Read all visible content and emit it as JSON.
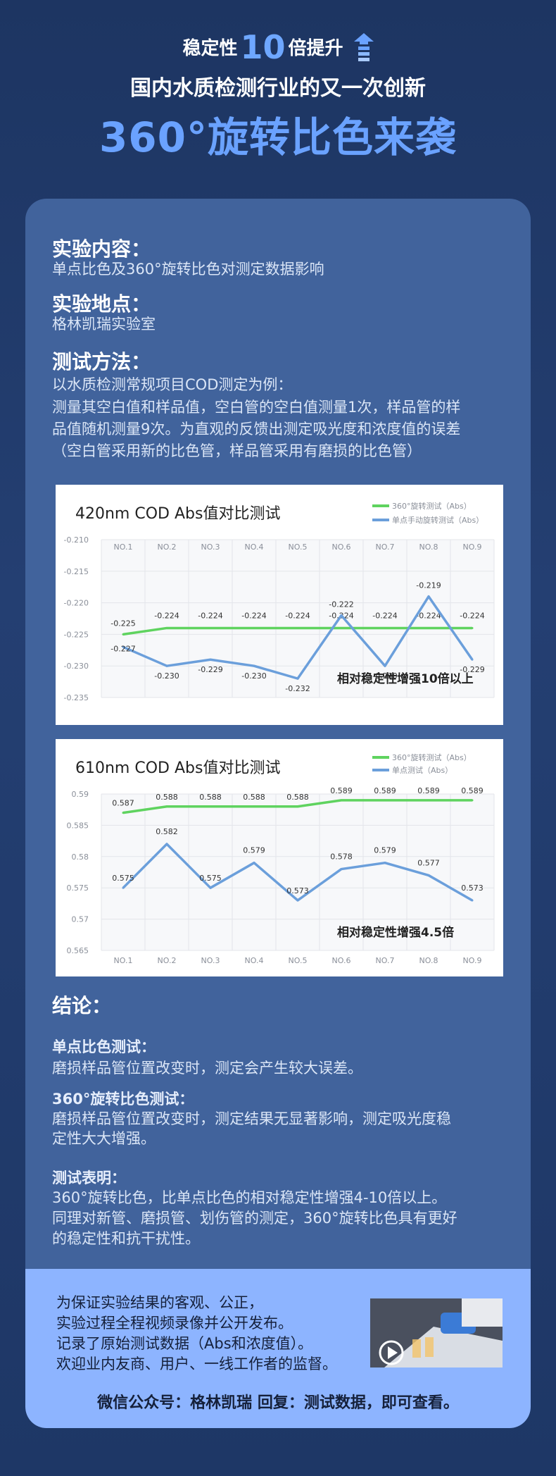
{
  "header": {
    "line1_pre": "稳定性",
    "line1_num": "10",
    "line1_post": "倍提升",
    "line2": "国内水质检测行业的又一次创新",
    "line3": "360°旋转比色来袭"
  },
  "sections": {
    "content_title": "实验内容：",
    "content_text": "单点比色及360°旋转比色对测定数据影响",
    "location_title": "实验地点：",
    "location_text": "格林凯瑞实验室",
    "method_title": "测试方法：",
    "method_lines": [
      "以水质检测常规项目COD测定为例：",
      "测量其空白值和样品值，空白管的空白值测量1次，样品管的样",
      "品值随机测量9次。为直观的反馈出测定吸光度和浓度值的误差",
      "（空白管采用新的比色管，样品管采用有磨损的比色管）"
    ]
  },
  "conclusion": {
    "title": "结论：",
    "single_title": "单点比色测试：",
    "single_text": "磨损样品管位置改变时，测定会产生较大误差。",
    "rotate_title": "360°旋转比色测试：",
    "rotate_lines": [
      "磨损样品管位置改变时，测定结果无显著影响，测定吸光度稳",
      "定性大大增强。"
    ],
    "summary_title": "测试表明：",
    "summary_lines": [
      "360°旋转比色，比单点比色的相对稳定性增强4-10倍以上。",
      "同理对新管、磨损管、划伤管的测定，360°旋转比色具有更好",
      "的稳定性和抗干扰性。"
    ]
  },
  "footer": {
    "lines": [
      "为保证实验结果的客观、公正，",
      "实验过程全程视频录像并公开发布。",
      "记录了原始测试数据（Abs和浓度值）。",
      "欢迎业内友商、用户、一线工作者的监督。"
    ],
    "wechat": "微信公众号：格林凯瑞    回复：测试数据，即可查看。"
  },
  "colors": {
    "rotate": "#5fd35f",
    "single": "#6b9fdb",
    "accent": "#6aa2ff"
  },
  "chart_data": [
    {
      "type": "line",
      "title": "420nm COD Abs值对比测试",
      "categories": [
        "NO.1",
        "NO.2",
        "NO.3",
        "NO.4",
        "NO.5",
        "NO.6",
        "NO.7",
        "NO.8",
        "NO.9"
      ],
      "ylim": [
        -0.235,
        -0.21
      ],
      "yticks": [
        "-0.210",
        "-0.215",
        "-0.220",
        "-0.225",
        "-0.230",
        "-0.235"
      ],
      "grid": true,
      "legend_position": "top-right",
      "series": [
        {
          "name": "360°旋转测试（Abs）",
          "values": [
            -0.225,
            -0.224,
            -0.224,
            -0.224,
            -0.224,
            -0.224,
            -0.224,
            -0.224,
            -0.224
          ],
          "labels": [
            "-0.225",
            "-0.224",
            "-0.224",
            "-0.224",
            "-0.224",
            "-0.224",
            "-0.224",
            "-0.224",
            "-0.224"
          ]
        },
        {
          "name": "单点手动旋转测试（Abs）",
          "values": [
            -0.227,
            -0.23,
            -0.229,
            -0.23,
            -0.232,
            -0.222,
            -0.23,
            -0.219,
            -0.229
          ],
          "labels": [
            "-0.227",
            "-0.230",
            "-0.229",
            "-0.230",
            "-0.232",
            "-0.222",
            "-0.230",
            "-0.219",
            "-0.229"
          ]
        }
      ],
      "annotation": "相对稳定性增强10倍以上"
    },
    {
      "type": "line",
      "title": "610nm COD Abs值对比测试",
      "categories": [
        "NO.1",
        "NO.2",
        "NO.3",
        "NO.4",
        "NO.5",
        "NO.6",
        "NO.7",
        "NO.8",
        "NO.9"
      ],
      "ylim": [
        0.565,
        0.59
      ],
      "yticks": [
        "0.59",
        "0.585",
        "0.58",
        "0.575",
        "0.57",
        "0.565"
      ],
      "grid": true,
      "legend_position": "top-right",
      "series": [
        {
          "name": "360°旋转测试（Abs）",
          "values": [
            0.587,
            0.588,
            0.588,
            0.588,
            0.588,
            0.589,
            0.589,
            0.589,
            0.589
          ],
          "labels": [
            "0.587",
            "0.588",
            "0.588",
            "0.588",
            "0.588",
            "0.589",
            "0.589",
            "0.589",
            "0.589"
          ]
        },
        {
          "name": "单点测试（Abs）",
          "values": [
            0.575,
            0.582,
            0.575,
            0.579,
            0.573,
            0.578,
            0.579,
            0.577,
            0.573
          ],
          "labels": [
            "0.575",
            "0.582",
            "0.575",
            "0.579",
            "0.573",
            "0.578",
            "0.579",
            "0.577",
            "0.573"
          ]
        }
      ],
      "annotation": "相对稳定性增强4.5倍"
    }
  ]
}
